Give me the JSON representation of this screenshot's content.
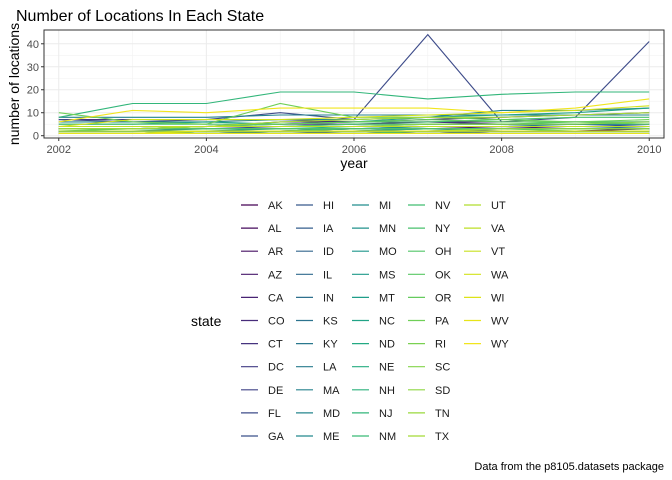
{
  "chart_data": {
    "type": "line",
    "title": "Number of Locations In Each State",
    "xlabel": "year",
    "ylabel": "number of locations",
    "caption": "Data from the p8105.datasets package",
    "x_ticks": [
      "2002",
      "2004",
      "2006",
      "2008",
      "2010"
    ],
    "y_ticks": [
      "0",
      "10",
      "20",
      "30",
      "40"
    ],
    "xlim": [
      2001.8,
      2010.2
    ],
    "ylim": [
      -1,
      46
    ],
    "grid": true,
    "legend_title": "state",
    "legend_position": "bottom",
    "x": [
      2002,
      2003,
      2004,
      2005,
      2006,
      2007,
      2008,
      2009,
      2010
    ],
    "series": [
      {
        "name": "AK",
        "color": "#440154",
        "values": [
          1,
          1,
          1,
          1,
          1,
          1,
          2,
          2,
          2
        ]
      },
      {
        "name": "AL",
        "color": "#450A5C",
        "values": [
          1,
          1,
          1,
          1,
          1,
          2,
          2,
          2,
          3
        ]
      },
      {
        "name": "AR",
        "color": "#471163",
        "values": [
          1,
          1,
          1,
          1,
          1,
          1,
          1,
          1,
          1
        ]
      },
      {
        "name": "AZ",
        "color": "#481A6C",
        "values": [
          2,
          2,
          2,
          2,
          3,
          3,
          4,
          3,
          3
        ]
      },
      {
        "name": "CA",
        "color": "#482373",
        "values": [
          3,
          3,
          4,
          6,
          6,
          7,
          8,
          9,
          10
        ]
      },
      {
        "name": "CO",
        "color": "#472C7A",
        "values": [
          3,
          3,
          4,
          5,
          5,
          6,
          6,
          6,
          6
        ]
      },
      {
        "name": "CT",
        "color": "#46337F",
        "values": [
          7,
          7,
          7,
          7,
          6,
          6,
          5,
          5,
          5
        ]
      },
      {
        "name": "DC",
        "color": "#433D84",
        "values": [
          1,
          1,
          1,
          1,
          1,
          1,
          1,
          1,
          1
        ]
      },
      {
        "name": "DE",
        "color": "#414487",
        "values": [
          2,
          2,
          2,
          2,
          2,
          2,
          2,
          2,
          2
        ]
      },
      {
        "name": "FL",
        "color": "#3E4C8A",
        "values": [
          7,
          6,
          7,
          10,
          7,
          44,
          6,
          8,
          41
        ]
      },
      {
        "name": "GA",
        "color": "#3B528B",
        "values": [
          3,
          3,
          3,
          4,
          4,
          5,
          5,
          5,
          4
        ]
      },
      {
        "name": "HI",
        "color": "#38598C",
        "values": [
          1,
          1,
          1,
          1,
          2,
          2,
          3,
          3,
          3
        ]
      },
      {
        "name": "IA",
        "color": "#355F8D",
        "values": [
          1,
          1,
          1,
          2,
          2,
          2,
          2,
          2,
          2
        ]
      },
      {
        "name": "ID",
        "color": "#33668E",
        "values": [
          1,
          1,
          1,
          1,
          1,
          1,
          2,
          2,
          2
        ]
      },
      {
        "name": "IL",
        "color": "#306A8E",
        "values": [
          3,
          3,
          3,
          3,
          3,
          3,
          2,
          2,
          2
        ]
      },
      {
        "name": "IN",
        "color": "#2E708E",
        "values": [
          1,
          1,
          2,
          2,
          3,
          3,
          3,
          3,
          3
        ]
      },
      {
        "name": "KS",
        "color": "#2C738E",
        "values": [
          1,
          1,
          1,
          2,
          2,
          3,
          3,
          3,
          4
        ]
      },
      {
        "name": "KY",
        "color": "#2A788E",
        "values": [
          2,
          2,
          2,
          2,
          2,
          2,
          2,
          2,
          2
        ]
      },
      {
        "name": "LA",
        "color": "#297B8E",
        "values": [
          2,
          2,
          3,
          3,
          3,
          4,
          4,
          5,
          5
        ]
      },
      {
        "name": "MA",
        "color": "#26828E",
        "values": [
          8,
          8,
          8,
          9,
          9,
          9,
          9,
          9,
          9
        ]
      },
      {
        "name": "MD",
        "color": "#25858E",
        "values": [
          6,
          6,
          6,
          7,
          7,
          8,
          11,
          11,
          12
        ]
      },
      {
        "name": "ME",
        "color": "#23898E",
        "values": [
          1,
          1,
          1,
          1,
          1,
          1,
          1,
          1,
          1
        ]
      },
      {
        "name": "MI",
        "color": "#218E8D",
        "values": [
          4,
          4,
          4,
          4,
          5,
          5,
          5,
          5,
          5
        ]
      },
      {
        "name": "MN",
        "color": "#20928C",
        "values": [
          2,
          2,
          2,
          3,
          3,
          4,
          4,
          4,
          4
        ]
      },
      {
        "name": "MO",
        "color": "#1F968B",
        "values": [
          1,
          1,
          2,
          2,
          2,
          3,
          3,
          3,
          3
        ]
      },
      {
        "name": "MS",
        "color": "#1F9A8A",
        "values": [
          1,
          1,
          2,
          2,
          2,
          2,
          2,
          2,
          2
        ]
      },
      {
        "name": "MT",
        "color": "#1F9E89",
        "values": [
          1,
          1,
          1,
          1,
          1,
          1,
          1,
          1,
          1
        ]
      },
      {
        "name": "NC",
        "color": "#21A386",
        "values": [
          5,
          5,
          6,
          5,
          6,
          8,
          9,
          10,
          12
        ]
      },
      {
        "name": "ND",
        "color": "#23A983",
        "values": [
          1,
          1,
          1,
          1,
          1,
          1,
          1,
          1,
          1
        ]
      },
      {
        "name": "NE",
        "color": "#27AD81",
        "values": [
          1,
          1,
          1,
          1,
          1,
          2,
          2,
          2,
          2
        ]
      },
      {
        "name": "NH",
        "color": "#2DB27D",
        "values": [
          3,
          3,
          3,
          3,
          4,
          4,
          4,
          4,
          4
        ]
      },
      {
        "name": "NJ",
        "color": "#32B67A",
        "values": [
          8,
          14,
          14,
          19,
          19,
          16,
          18,
          19,
          19
        ]
      },
      {
        "name": "NM",
        "color": "#39BA76",
        "values": [
          2,
          2,
          2,
          2,
          3,
          3,
          3,
          3,
          3
        ]
      },
      {
        "name": "NV",
        "color": "#41BE71",
        "values": [
          2,
          3,
          3,
          3,
          3,
          3,
          3,
          2,
          2
        ]
      },
      {
        "name": "NY",
        "color": "#49C16D",
        "values": [
          5,
          5,
          5,
          5,
          6,
          6,
          7,
          8,
          8
        ]
      },
      {
        "name": "OH",
        "color": "#52C569",
        "values": [
          4,
          4,
          4,
          4,
          5,
          5,
          5,
          6,
          6
        ]
      },
      {
        "name": "OK",
        "color": "#5AC864",
        "values": [
          3,
          3,
          3,
          3,
          3,
          3,
          3,
          3,
          3
        ]
      },
      {
        "name": "OR",
        "color": "#65CB5E",
        "values": [
          3,
          3,
          4,
          5,
          6,
          7,
          6,
          6,
          5
        ]
      },
      {
        "name": "PA",
        "color": "#6FCF57",
        "values": [
          10,
          6,
          5,
          14,
          8,
          8,
          7,
          6,
          7
        ]
      },
      {
        "name": "RI",
        "color": "#7AD151",
        "values": [
          2,
          2,
          2,
          2,
          2,
          2,
          2,
          2,
          2
        ]
      },
      {
        "name": "SC",
        "color": "#84D44B",
        "values": [
          3,
          3,
          4,
          4,
          4,
          5,
          5,
          5,
          6
        ]
      },
      {
        "name": "SD",
        "color": "#8FD744",
        "values": [
          1,
          1,
          1,
          1,
          1,
          1,
          1,
          1,
          1
        ]
      },
      {
        "name": "TN",
        "color": "#9AD93C",
        "values": [
          1,
          1,
          2,
          2,
          2,
          2,
          3,
          3,
          3
        ]
      },
      {
        "name": "TX",
        "color": "#A5DB36",
        "values": [
          3,
          3,
          4,
          6,
          7,
          8,
          8,
          9,
          10
        ]
      },
      {
        "name": "UT",
        "color": "#B1DD2F",
        "values": [
          2,
          2,
          2,
          2,
          2,
          2,
          2,
          2,
          2
        ]
      },
      {
        "name": "VA",
        "color": "#BDDF26",
        "values": [
          4,
          4,
          4,
          4,
          4,
          4,
          4,
          4,
          4
        ]
      },
      {
        "name": "VT",
        "color": "#C8E020",
        "values": [
          1,
          1,
          1,
          1,
          1,
          1,
          1,
          1,
          1
        ]
      },
      {
        "name": "WA",
        "color": "#D2E21B",
        "values": [
          4,
          7,
          7,
          7,
          8,
          9,
          10,
          11,
          13
        ]
      },
      {
        "name": "WI",
        "color": "#DDE318",
        "values": [
          1,
          1,
          2,
          2,
          2,
          2,
          2,
          2,
          2
        ]
      },
      {
        "name": "WV",
        "color": "#E7E419",
        "values": [
          1,
          1,
          1,
          1,
          1,
          1,
          1,
          1,
          1
        ]
      },
      {
        "name": "WY",
        "color": "#F1E51D",
        "values": [
          6,
          11,
          10,
          12,
          12,
          12,
          10,
          12,
          16
        ]
      }
    ]
  }
}
